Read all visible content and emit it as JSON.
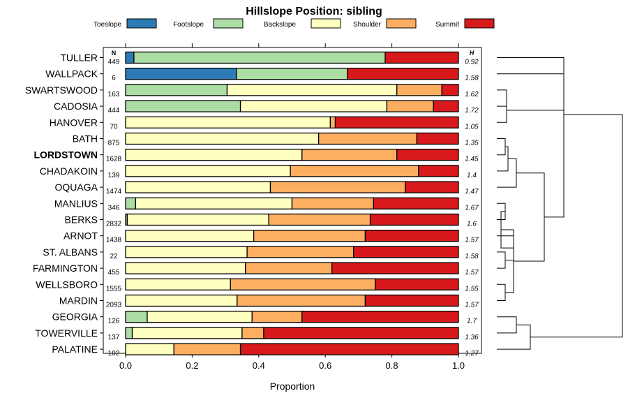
{
  "chart_data": {
    "type": "bar",
    "orientation": "horizontal-stacked",
    "title": "Hillslope Position: sibling",
    "xlabel": "Proportion",
    "xlim": [
      0,
      1
    ],
    "xticks": [
      "0.0",
      "0.2",
      "0.4",
      "0.6",
      "0.8",
      "1.0"
    ],
    "n_header": "N",
    "h_header": "H",
    "legend": [
      {
        "name": "Toeslope",
        "color": "#2c7bb6"
      },
      {
        "name": "Footslope",
        "color": "#abdda4"
      },
      {
        "name": "Backslope",
        "color": "#ffffbf"
      },
      {
        "name": "Shoulder",
        "color": "#fdae61"
      },
      {
        "name": "Summit",
        "color": "#d7191c"
      }
    ],
    "highlight": "LORDSTOWN",
    "rows": [
      {
        "name": "TULLER",
        "n": "449",
        "h": "0.92",
        "values": [
          0.025,
          0.755,
          0,
          0,
          0.22
        ]
      },
      {
        "name": "WALLPACK",
        "n": "6",
        "h": "1.58",
        "values": [
          0.333,
          0.333,
          0,
          0,
          0.334
        ]
      },
      {
        "name": "SWARTSWOOD",
        "n": "163",
        "h": "1.62",
        "values": [
          0,
          0.305,
          0.51,
          0.135,
          0.05
        ]
      },
      {
        "name": "CADOSIA",
        "n": "444",
        "h": "1.72",
        "values": [
          0,
          0.345,
          0.44,
          0.14,
          0.075
        ]
      },
      {
        "name": "HANOVER",
        "n": "70",
        "h": "1.05",
        "values": [
          0,
          0,
          0.615,
          0.015,
          0.37
        ]
      },
      {
        "name": "BATH",
        "n": "875",
        "h": "1.35",
        "values": [
          0,
          0,
          0.58,
          0.295,
          0.125
        ]
      },
      {
        "name": "LORDSTOWN",
        "n": "1628",
        "h": "1.45",
        "values": [
          0,
          0,
          0.53,
          0.285,
          0.185
        ]
      },
      {
        "name": "CHADAKOIN",
        "n": "139",
        "h": "1.4",
        "values": [
          0,
          0,
          0.495,
          0.385,
          0.12
        ]
      },
      {
        "name": "OQUAGA",
        "n": "1474",
        "h": "1.47",
        "values": [
          0,
          0,
          0.435,
          0.405,
          0.16
        ]
      },
      {
        "name": "MANLIUS",
        "n": "346",
        "h": "1.67",
        "values": [
          0,
          0.03,
          0.47,
          0.245,
          0.255
        ]
      },
      {
        "name": "BERKS",
        "n": "2832",
        "h": "1.6",
        "values": [
          0,
          0.005,
          0.425,
          0.305,
          0.265
        ]
      },
      {
        "name": "ARNOT",
        "n": "1438",
        "h": "1.57",
        "values": [
          0,
          0,
          0.385,
          0.335,
          0.28
        ]
      },
      {
        "name": "ST. ALBANS",
        "n": "22",
        "h": "1.58",
        "values": [
          0,
          0,
          0.365,
          0.32,
          0.315
        ]
      },
      {
        "name": "FARMINGTON",
        "n": "455",
        "h": "1.57",
        "values": [
          0,
          0,
          0.36,
          0.26,
          0.38
        ]
      },
      {
        "name": "WELLSBORO",
        "n": "1555",
        "h": "1.55",
        "values": [
          0,
          0,
          0.315,
          0.435,
          0.25
        ]
      },
      {
        "name": "MARDIN",
        "n": "2093",
        "h": "1.57",
        "values": [
          0,
          0,
          0.335,
          0.385,
          0.28
        ]
      },
      {
        "name": "GEORGIA",
        "n": "126",
        "h": "1.7",
        "values": [
          0,
          0.065,
          0.315,
          0.15,
          0.47
        ]
      },
      {
        "name": "TOWERVILLE",
        "n": "137",
        "h": "1.36",
        "values": [
          0,
          0.02,
          0.33,
          0.065,
          0.585
        ]
      },
      {
        "name": "PALATINE",
        "n": "102",
        "h": "1.27",
        "values": [
          0,
          0,
          0.145,
          0.2,
          0.655
        ]
      }
    ]
  }
}
